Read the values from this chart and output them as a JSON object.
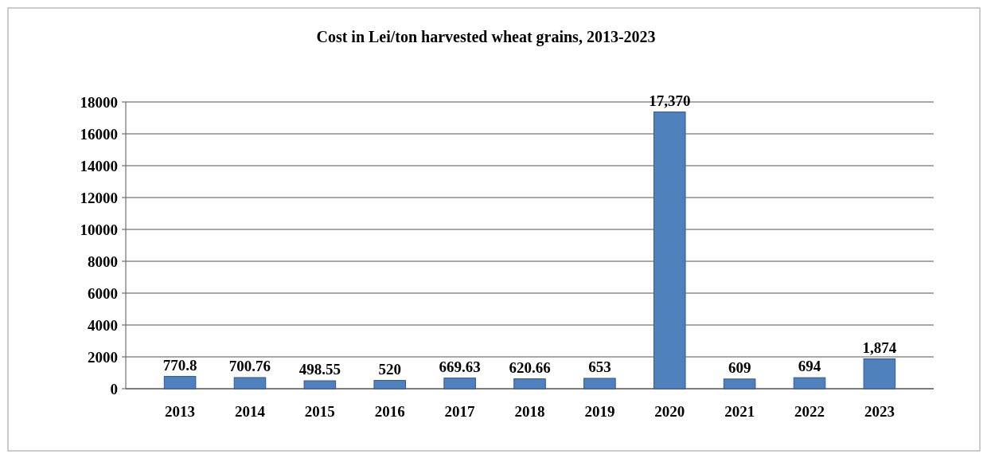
{
  "chart_data": {
    "type": "bar",
    "title": "Cost in Lei/ton harvested wheat grains, 2013-2023",
    "categories": [
      "2013",
      "2014",
      "2015",
      "2016",
      "2017",
      "2018",
      "2019",
      "2020",
      "2021",
      "2022",
      "2023"
    ],
    "values": [
      770.8,
      700.76,
      498.55,
      520,
      669.63,
      620.66,
      653,
      17370,
      609,
      694,
      1874
    ],
    "value_labels": [
      "770.8",
      "700.76",
      "498.55",
      "520",
      "669.63",
      "620.66",
      "653",
      "17,370",
      "609",
      "694",
      "1,874"
    ],
    "color": "#4f81bd",
    "ylim": [
      0,
      18000
    ],
    "yticks": [
      0,
      2000,
      4000,
      6000,
      8000,
      10000,
      12000,
      14000,
      16000,
      18000
    ],
    "grid": "y"
  }
}
